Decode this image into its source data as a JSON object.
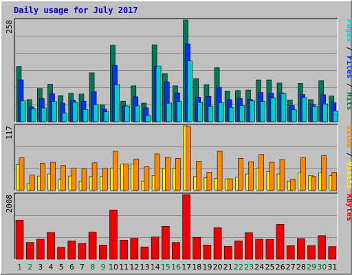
{
  "title": "Daily usage for July 2017",
  "colors": {
    "pages": "#00cccc",
    "files": "#0033ee",
    "hits": "#007755",
    "sites": "#ff8800",
    "visits": "#ffee00",
    "kbytes": "#ee0000",
    "weekday_label": "#000000",
    "weekend_label": "#006633",
    "title": "#0000cc"
  },
  "chart_data": [
    {
      "type": "bar",
      "panel": "hits-files-pages",
      "ymax_label": "258",
      "ylim": [
        0,
        258
      ],
      "grid": true,
      "legend_parts": [
        {
          "text": "Pages",
          "color": "#00cccc"
        },
        {
          "text": " / ",
          "color": "#000000"
        },
        {
          "text": "Files",
          "color": "#0033ee"
        },
        {
          "text": " / ",
          "color": "#000000"
        },
        {
          "text": "Hits",
          "color": "#007755"
        }
      ],
      "categories": [
        "1",
        "2",
        "3",
        "4",
        "5",
        "6",
        "7",
        "8",
        "9",
        "10",
        "11",
        "12",
        "13",
        "14",
        "15",
        "16",
        "17",
        "18",
        "19",
        "20",
        "21",
        "22",
        "23",
        "24",
        "25",
        "26",
        "27",
        "28",
        "29",
        "30",
        "31"
      ],
      "series": [
        {
          "name": "Hits",
          "color": "#007755",
          "values": [
            140,
            56,
            84,
            95,
            66,
            72,
            70,
            124,
            43,
            194,
            52,
            91,
            47,
            195,
            122,
            91,
            258,
            109,
            94,
            137,
            78,
            79,
            80,
            106,
            106,
            98,
            55,
            97,
            56,
            104,
            65
          ]
        },
        {
          "name": "Files",
          "color": "#0033ee",
          "values": [
            106,
            38,
            59,
            71,
            47,
            54,
            52,
            76,
            32,
            143,
            40,
            63,
            35,
            140,
            101,
            73,
            197,
            62,
            64,
            87,
            56,
            59,
            56,
            74,
            72,
            73,
            41,
            69,
            44,
            68,
            48
          ]
        },
        {
          "name": "Pages",
          "color": "#00cccc",
          "values": [
            53,
            33,
            35,
            51,
            22,
            49,
            31,
            43,
            25,
            94,
            40,
            40,
            16,
            141,
            47,
            51,
            154,
            49,
            39,
            48,
            36,
            41,
            53,
            51,
            60,
            72,
            30,
            61,
            39,
            45,
            27
          ]
        }
      ]
    },
    {
      "type": "bar",
      "panel": "visits-sites",
      "ymax_label": "117",
      "ylim": [
        0,
        117
      ],
      "grid": true,
      "legend_parts": [
        {
          "text": "Sites",
          "color": "#ff8800"
        },
        {
          "text": " / ",
          "color": "#000000"
        },
        {
          "text": "Visits",
          "color": "#ffee00"
        }
      ],
      "categories": [
        "1",
        "2",
        "3",
        "4",
        "5",
        "6",
        "7",
        "8",
        "9",
        "10",
        "11",
        "12",
        "13",
        "14",
        "15",
        "16",
        "17",
        "18",
        "19",
        "20",
        "21",
        "22",
        "23",
        "24",
        "25",
        "26",
        "27",
        "28",
        "29",
        "30",
        "31"
      ],
      "series": [
        {
          "name": "Visits",
          "color": "#ffee00",
          "values": [
            47,
            12,
            26,
            30,
            20,
            26,
            17,
            25,
            25,
            40,
            48,
            48,
            17,
            27,
            40,
            40,
            117,
            25,
            23,
            22,
            21,
            24,
            30,
            40,
            34,
            30,
            17,
            32,
            27,
            32,
            27
          ]
        },
        {
          "name": "Sites",
          "color": "#ff8800",
          "values": [
            59,
            28,
            49,
            51,
            45,
            40,
            39,
            50,
            40,
            71,
            48,
            57,
            43,
            66,
            60,
            58,
            115,
            53,
            33,
            71,
            21,
            58,
            52,
            65,
            51,
            56,
            20,
            59,
            25,
            63,
            33
          ]
        }
      ]
    },
    {
      "type": "bar",
      "panel": "kbytes",
      "ymax_label": "2008",
      "ylim": [
        0,
        2008
      ],
      "grid": true,
      "legend_parts": [
        {
          "text": "KBytes",
          "color": "#ee0000"
        }
      ],
      "categories": [
        "1",
        "2",
        "3",
        "4",
        "5",
        "6",
        "7",
        "8",
        "9",
        "10",
        "11",
        "12",
        "13",
        "14",
        "15",
        "16",
        "17",
        "18",
        "19",
        "20",
        "21",
        "22",
        "23",
        "24",
        "25",
        "26",
        "27",
        "28",
        "29",
        "30",
        "31"
      ],
      "series": [
        {
          "name": "KBytes",
          "color": "#ee0000",
          "values": [
            1210,
            520,
            620,
            830,
            370,
            570,
            490,
            840,
            440,
            1530,
            590,
            650,
            380,
            690,
            1020,
            520,
            2008,
            680,
            440,
            980,
            400,
            570,
            820,
            620,
            610,
            1080,
            420,
            640,
            420,
            730,
            390
          ]
        }
      ]
    }
  ],
  "x_labels": [
    {
      "text": "1",
      "weekend": true
    },
    {
      "text": "2",
      "weekend": true
    },
    {
      "text": "3",
      "weekend": false
    },
    {
      "text": "4",
      "weekend": false
    },
    {
      "text": "5",
      "weekend": false
    },
    {
      "text": "6",
      "weekend": false
    },
    {
      "text": "7",
      "weekend": false
    },
    {
      "text": "8",
      "weekend": true
    },
    {
      "text": "9",
      "weekend": true
    },
    {
      "text": "10",
      "weekend": false
    },
    {
      "text": "11",
      "weekend": false
    },
    {
      "text": "12",
      "weekend": false
    },
    {
      "text": "13",
      "weekend": false
    },
    {
      "text": "14",
      "weekend": false
    },
    {
      "text": "15",
      "weekend": true
    },
    {
      "text": "16",
      "weekend": true
    },
    {
      "text": "17",
      "weekend": false
    },
    {
      "text": "18",
      "weekend": false
    },
    {
      "text": "19",
      "weekend": false
    },
    {
      "text": "20",
      "weekend": false
    },
    {
      "text": "21",
      "weekend": false
    },
    {
      "text": "22",
      "weekend": true
    },
    {
      "text": "23",
      "weekend": true
    },
    {
      "text": "24",
      "weekend": false
    },
    {
      "text": "25",
      "weekend": false
    },
    {
      "text": "26",
      "weekend": false
    },
    {
      "text": "27",
      "weekend": false
    },
    {
      "text": "28",
      "weekend": false
    },
    {
      "text": "29",
      "weekend": true
    },
    {
      "text": "30",
      "weekend": true
    },
    {
      "text": "31",
      "weekend": false
    }
  ]
}
